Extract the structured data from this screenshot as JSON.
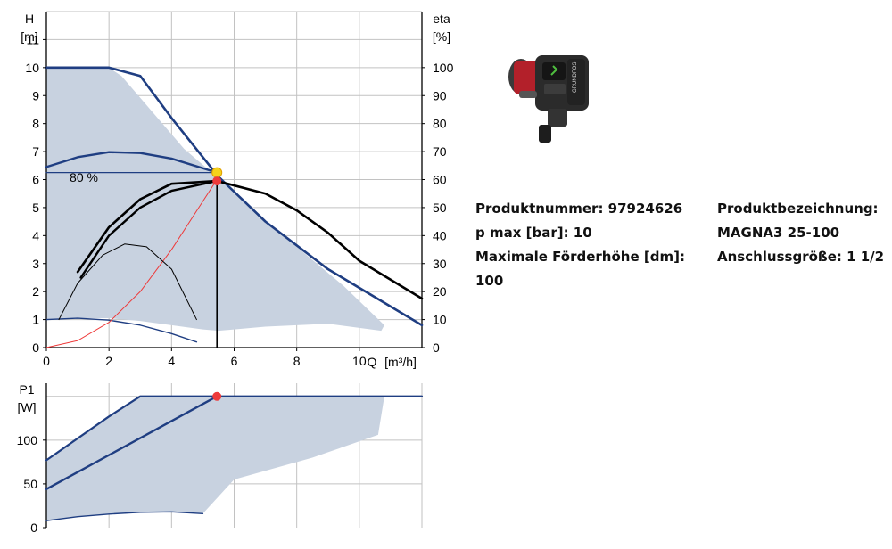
{
  "chart_data": [
    {
      "type": "line",
      "ylabel": "H",
      "yunit": "[m]",
      "y2label": "eta",
      "y2unit": "[%]",
      "xlabel": "Q",
      "xunit": "[m³/h]",
      "xlim": [
        0,
        12
      ],
      "ylim": [
        0,
        12
      ],
      "y2lim": [
        0,
        120
      ],
      "xticks": [
        "0",
        "2",
        "4",
        "6",
        "8",
        "10"
      ],
      "yticks": [
        "0",
        "1",
        "2",
        "3",
        "4",
        "5",
        "6",
        "7",
        "8",
        "9",
        "10",
        "11"
      ],
      "y2ticks": [
        "0",
        "10",
        "20",
        "30",
        "40",
        "50",
        "60",
        "70",
        "80",
        "90",
        "100"
      ],
      "annotation": "80 %",
      "grid": true,
      "operating_area": [
        [
          0,
          10
        ],
        [
          2.0,
          10
        ],
        [
          2.4,
          9.7
        ],
        [
          3.4,
          8.4
        ],
        [
          4.4,
          7.1
        ],
        [
          5.45,
          6.1
        ],
        [
          6.5,
          5.0
        ],
        [
          8,
          3.6
        ],
        [
          9.5,
          2.2
        ],
        [
          10.8,
          0.8
        ],
        [
          10.7,
          0.6
        ],
        [
          9,
          0.85
        ],
        [
          7,
          0.75
        ],
        [
          5.5,
          0.6
        ],
        [
          5,
          0.65
        ],
        [
          4,
          0.8
        ],
        [
          3,
          0.95
        ],
        [
          2,
          1.05
        ],
        [
          1,
          1.05
        ],
        [
          0,
          1.0
        ]
      ],
      "series": [
        {
          "role": "max-curve",
          "color": "#1f3e82",
          "points": [
            [
              0,
              10
            ],
            [
              2.0,
              10
            ],
            [
              3.0,
              9.7
            ],
            [
              4.0,
              8.2
            ],
            [
              5.5,
              6.1
            ],
            [
              7,
              4.5
            ],
            [
              9,
              2.8
            ],
            [
              12,
              0.8
            ]
          ]
        },
        {
          "role": "proportional-pressure",
          "color": "#1f3e82",
          "points": [
            [
              0,
              6.45
            ],
            [
              1,
              6.8
            ],
            [
              2,
              6.98
            ],
            [
              3,
              6.95
            ],
            [
              4,
              6.75
            ],
            [
              5.45,
              6.25
            ]
          ]
        },
        {
          "role": "constant-pressure",
          "color": "#1f3e82",
          "points": [
            [
              0,
              6.25
            ],
            [
              5.45,
              6.25
            ]
          ]
        },
        {
          "role": "min-curve",
          "color": "#1f3e82",
          "points": [
            [
              0,
              1.0
            ],
            [
              1,
              1.05
            ],
            [
              2,
              0.98
            ],
            [
              3,
              0.8
            ],
            [
              4,
              0.5
            ],
            [
              4.8,
              0.2
            ]
          ]
        },
        {
          "role": "system-curve",
          "color": "#ee3a3a",
          "points": [
            [
              0,
              0
            ],
            [
              1,
              0.25
            ],
            [
              2,
              0.9
            ],
            [
              3,
              2.0
            ],
            [
              4,
              3.5
            ],
            [
              5.45,
              6.0
            ]
          ]
        },
        {
          "role": "efficiency",
          "color": "#000000",
          "points": [
            [
              1,
              2.7
            ],
            [
              2,
              4.3
            ],
            [
              3,
              5.3
            ],
            [
              4,
              5.85
            ],
            [
              5.45,
              5.95
            ],
            [
              7,
              5.5
            ],
            [
              8,
              4.9
            ],
            [
              9,
              4.1
            ],
            [
              10,
              3.1
            ],
            [
              12,
              1.75
            ]
          ]
        },
        {
          "role": "efficiency-2",
          "color": "#000000",
          "points": [
            [
              1.1,
              2.5
            ],
            [
              2,
              4.0
            ],
            [
              3,
              5.0
            ],
            [
              4,
              5.6
            ],
            [
              5.45,
              5.95
            ]
          ]
        },
        {
          "role": "efficiency-part",
          "color": "#000000",
          "points": [
            [
              0.4,
              1.0
            ],
            [
              1,
              2.3
            ],
            [
              1.8,
              3.3
            ],
            [
              2.5,
              3.7
            ],
            [
              3.2,
              3.6
            ],
            [
              4,
              2.8
            ],
            [
              4.8,
              1.0
            ]
          ]
        }
      ],
      "duty_point": {
        "Q": 5.45,
        "H": 5.95
      },
      "bep_point": {
        "Q": 5.45,
        "H": 6.25
      }
    },
    {
      "type": "line",
      "ylabel": "P1",
      "yunit": "[W]",
      "xlim": [
        0,
        12
      ],
      "ylim": [
        0,
        165
      ],
      "yticks": [
        {
          "label": "0",
          "value": 0
        },
        {
          "label": "50",
          "value": 50
        },
        {
          "label": "100",
          "value": 100
        }
      ],
      "grid": true,
      "operating_area": [
        [
          0,
          77
        ],
        [
          2.0,
          127
        ],
        [
          3.0,
          150
        ],
        [
          10.8,
          150
        ],
        [
          10.6,
          106
        ],
        [
          8.5,
          80
        ],
        [
          6,
          55
        ],
        [
          5,
          16
        ],
        [
          4,
          18
        ],
        [
          3,
          17.5
        ],
        [
          2,
          15.5
        ],
        [
          1,
          12.5
        ],
        [
          0,
          8
        ]
      ],
      "series": [
        {
          "role": "max-power",
          "color": "#1f3e82",
          "points": [
            [
              0,
              77
            ],
            [
              2.0,
              127
            ],
            [
              3.0,
              150
            ],
            [
              12,
              150
            ]
          ]
        },
        {
          "role": "power-curve",
          "color": "#1f3e82",
          "points": [
            [
              0,
              44
            ],
            [
              5.45,
              150
            ]
          ]
        },
        {
          "role": "min-power",
          "color": "#1f3e82",
          "points": [
            [
              0,
              8
            ],
            [
              1,
              12.5
            ],
            [
              2,
              15.5
            ],
            [
              3,
              17.5
            ],
            [
              4,
              18
            ],
            [
              5,
              16
            ]
          ]
        }
      ],
      "duty_point": {
        "Q": 5.45,
        "P": 150
      }
    }
  ],
  "product": {
    "image_icon": "circulator-pump-image",
    "brand": "GRUNDFOS",
    "left_lines": [
      "Produktnummer: 97924626",
      "p max [bar]: 10",
      "Maximale Förderhöhe [dm]:",
      "100"
    ],
    "right_lines": [
      "Produktbezeichnung:",
      "MAGNA3 25-100",
      "Anschlussgröße: 1 1/2"
    ]
  },
  "colors": {
    "area": "#c8d2e0",
    "curve": "#1f3e82",
    "red": "#ee3a3a",
    "yellow": "#f5d21a",
    "grid": "#c2c2c2"
  }
}
